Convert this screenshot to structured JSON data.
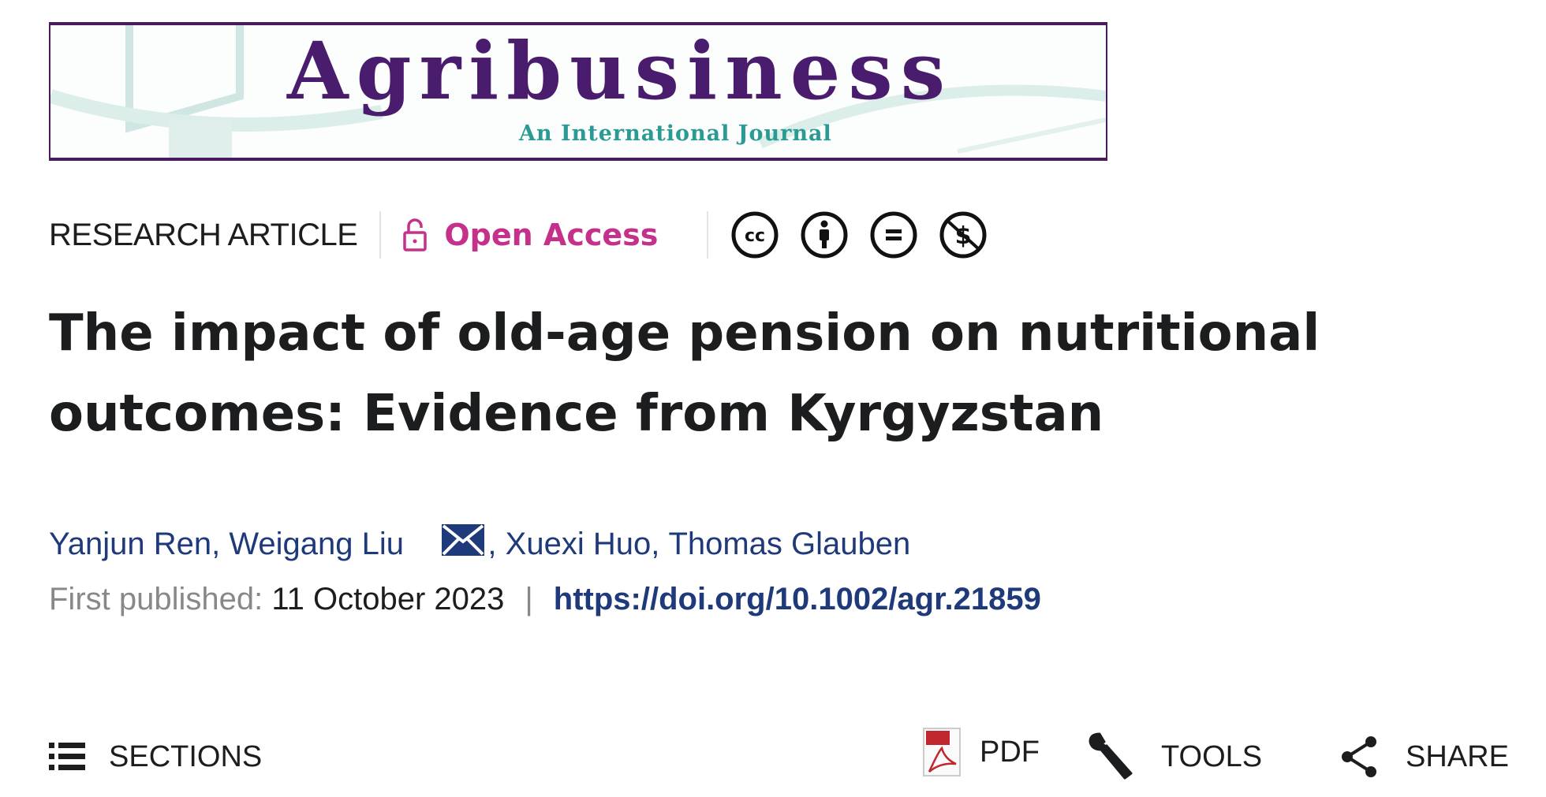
{
  "journal_logo": {
    "title": "Agribusiness",
    "subtitle": "An International Journal",
    "brand_color": "#4a1c6e",
    "accent_color": "#2a9a94"
  },
  "article_meta": {
    "type": "RESEARCH ARTICLE",
    "access": "Open Access",
    "access_icon": "open-lock-icon",
    "access_color": "#c4308a",
    "license_icons": [
      "cc-icon",
      "by-attribution-icon",
      "no-derivatives-icon",
      "non-commercial-icon"
    ]
  },
  "title": {
    "line1": "The impact of old-age pension on nutritional",
    "line2": "outcomes: Evidence from Kyrgyzstan"
  },
  "authors": [
    {
      "name": "Yanjun Ren",
      "sep": ", "
    },
    {
      "name": "Weigang Liu",
      "sep": ", ",
      "corresponding": true
    },
    {
      "name": "Xuexi Huo",
      "sep": ", "
    },
    {
      "name": "Thomas Glauben",
      "sep": ""
    }
  ],
  "publication": {
    "label": "First published:",
    "date": "11 October 2023",
    "separator": "|",
    "doi": "https://doi.org/10.1002/agr.21859"
  },
  "toolbar": {
    "sections": "SECTIONS",
    "pdf": "PDF",
    "tools": "TOOLS",
    "share": "SHARE"
  }
}
